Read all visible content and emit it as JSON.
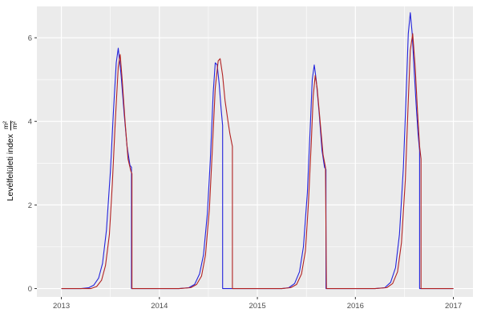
{
  "chart_data": {
    "type": "line",
    "title": "",
    "xlabel": "",
    "ylabel": "Levélfelületi index m²/m²",
    "ylabel_text": "Levélfelületi index",
    "ylabel_num": "m²",
    "ylabel_den": "m²",
    "xlim": [
      2012.75,
      2017.2
    ],
    "ylim": [
      -0.2,
      6.75
    ],
    "x_ticks": [
      2013,
      2014,
      2015,
      2016,
      2017
    ],
    "y_ticks": [
      0,
      2,
      4,
      6
    ],
    "x_minor_ticks": [
      2013.5,
      2014.5,
      2015.5,
      2016.5
    ],
    "y_minor_ticks": [
      1,
      3,
      5
    ],
    "panel_color": "#EBEBEB",
    "grid_color": "#FFFFFF",
    "tick_color": "#333333",
    "tick_label_color": "#4D4D4D",
    "legend": "none",
    "grid": "on",
    "series": [
      {
        "name": "blue",
        "color": "#2323DC",
        "points": [
          [
            2013.0,
            0
          ],
          [
            2013.1,
            0
          ],
          [
            2013.2,
            0
          ],
          [
            2013.28,
            0.02
          ],
          [
            2013.33,
            0.08
          ],
          [
            2013.38,
            0.25
          ],
          [
            2013.42,
            0.6
          ],
          [
            2013.46,
            1.4
          ],
          [
            2013.5,
            2.8
          ],
          [
            2013.53,
            4.2
          ],
          [
            2013.56,
            5.4
          ],
          [
            2013.58,
            5.75
          ],
          [
            2013.61,
            5.1
          ],
          [
            2013.64,
            4.2
          ],
          [
            2013.67,
            3.4
          ],
          [
            2013.7,
            2.95
          ],
          [
            2013.715,
            2.9
          ],
          [
            2013.715,
            0
          ],
          [
            2013.8,
            0
          ],
          [
            2013.9,
            0
          ],
          [
            2014.0,
            0
          ],
          [
            2014.1,
            0
          ],
          [
            2014.2,
            0
          ],
          [
            2014.3,
            0.02
          ],
          [
            2014.36,
            0.1
          ],
          [
            2014.41,
            0.35
          ],
          [
            2014.45,
            0.8
          ],
          [
            2014.49,
            1.8
          ],
          [
            2014.52,
            3.1
          ],
          [
            2014.55,
            4.7
          ],
          [
            2014.57,
            5.4
          ],
          [
            2014.59,
            5.35
          ],
          [
            2014.61,
            4.9
          ],
          [
            2014.63,
            4.3
          ],
          [
            2014.645,
            3.9
          ],
          [
            2014.645,
            0
          ],
          [
            2014.75,
            0
          ],
          [
            2014.85,
            0
          ],
          [
            2014.95,
            0
          ],
          [
            2015.05,
            0
          ],
          [
            2015.15,
            0
          ],
          [
            2015.25,
            0
          ],
          [
            2015.32,
            0.02
          ],
          [
            2015.38,
            0.12
          ],
          [
            2015.43,
            0.4
          ],
          [
            2015.47,
            1.0
          ],
          [
            2015.51,
            2.3
          ],
          [
            2015.54,
            3.9
          ],
          [
            2015.56,
            5.0
          ],
          [
            2015.58,
            5.35
          ],
          [
            2015.6,
            5.0
          ],
          [
            2015.63,
            4.2
          ],
          [
            2015.66,
            3.3
          ],
          [
            2015.685,
            2.9
          ],
          [
            2015.7,
            2.85
          ],
          [
            2015.7,
            0
          ],
          [
            2015.8,
            0
          ],
          [
            2015.9,
            0
          ],
          [
            2016.0,
            0
          ],
          [
            2016.1,
            0
          ],
          [
            2016.2,
            0
          ],
          [
            2016.3,
            0.02
          ],
          [
            2016.36,
            0.15
          ],
          [
            2016.41,
            0.5
          ],
          [
            2016.45,
            1.3
          ],
          [
            2016.49,
            2.9
          ],
          [
            2016.52,
            4.8
          ],
          [
            2016.54,
            6.1
          ],
          [
            2016.56,
            6.6
          ],
          [
            2016.58,
            6.1
          ],
          [
            2016.6,
            5.2
          ],
          [
            2016.62,
            4.4
          ],
          [
            2016.64,
            3.7
          ],
          [
            2016.655,
            3.3
          ],
          [
            2016.655,
            0
          ],
          [
            2016.75,
            0
          ],
          [
            2016.85,
            0
          ],
          [
            2016.95,
            0
          ],
          [
            2017.0,
            0
          ]
        ]
      },
      {
        "name": "red",
        "color": "#B22222",
        "points": [
          [
            2013.0,
            0
          ],
          [
            2013.1,
            0
          ],
          [
            2013.2,
            0
          ],
          [
            2013.3,
            0
          ],
          [
            2013.36,
            0.05
          ],
          [
            2013.41,
            0.2
          ],
          [
            2013.45,
            0.55
          ],
          [
            2013.49,
            1.3
          ],
          [
            2013.52,
            2.5
          ],
          [
            2013.55,
            4.0
          ],
          [
            2013.58,
            5.3
          ],
          [
            2013.6,
            5.6
          ],
          [
            2013.62,
            5.0
          ],
          [
            2013.65,
            4.0
          ],
          [
            2013.68,
            3.1
          ],
          [
            2013.71,
            2.8
          ],
          [
            2013.72,
            2.75
          ],
          [
            2013.72,
            0
          ],
          [
            2013.8,
            0
          ],
          [
            2013.9,
            0
          ],
          [
            2014.0,
            0
          ],
          [
            2014.1,
            0
          ],
          [
            2014.2,
            0
          ],
          [
            2014.32,
            0.02
          ],
          [
            2014.38,
            0.1
          ],
          [
            2014.43,
            0.3
          ],
          [
            2014.47,
            0.8
          ],
          [
            2014.51,
            1.9
          ],
          [
            2014.54,
            3.3
          ],
          [
            2014.57,
            4.8
          ],
          [
            2014.6,
            5.45
          ],
          [
            2014.62,
            5.5
          ],
          [
            2014.645,
            5.1
          ],
          [
            2014.67,
            4.5
          ],
          [
            2014.7,
            4.0
          ],
          [
            2014.72,
            3.7
          ],
          [
            2014.745,
            3.4
          ],
          [
            2014.745,
            0
          ],
          [
            2014.85,
            0
          ],
          [
            2014.95,
            0
          ],
          [
            2015.05,
            0
          ],
          [
            2015.15,
            0
          ],
          [
            2015.25,
            0
          ],
          [
            2015.34,
            0.02
          ],
          [
            2015.4,
            0.1
          ],
          [
            2015.45,
            0.35
          ],
          [
            2015.49,
            0.9
          ],
          [
            2015.52,
            2.0
          ],
          [
            2015.55,
            3.5
          ],
          [
            2015.57,
            4.6
          ],
          [
            2015.59,
            5.1
          ],
          [
            2015.61,
            4.8
          ],
          [
            2015.64,
            4.0
          ],
          [
            2015.67,
            3.2
          ],
          [
            2015.695,
            2.9
          ],
          [
            2015.705,
            0
          ],
          [
            2015.8,
            0
          ],
          [
            2015.9,
            0
          ],
          [
            2016.0,
            0
          ],
          [
            2016.1,
            0
          ],
          [
            2016.2,
            0
          ],
          [
            2016.32,
            0.02
          ],
          [
            2016.38,
            0.12
          ],
          [
            2016.43,
            0.4
          ],
          [
            2016.47,
            1.1
          ],
          [
            2016.51,
            2.6
          ],
          [
            2016.54,
            4.5
          ],
          [
            2016.56,
            5.7
          ],
          [
            2016.585,
            6.1
          ],
          [
            2016.61,
            5.3
          ],
          [
            2016.635,
            4.2
          ],
          [
            2016.655,
            3.4
          ],
          [
            2016.67,
            3.1
          ],
          [
            2016.67,
            0
          ],
          [
            2016.77,
            0
          ],
          [
            2016.87,
            0
          ],
          [
            2016.97,
            0
          ],
          [
            2017.0,
            0
          ]
        ]
      }
    ]
  }
}
